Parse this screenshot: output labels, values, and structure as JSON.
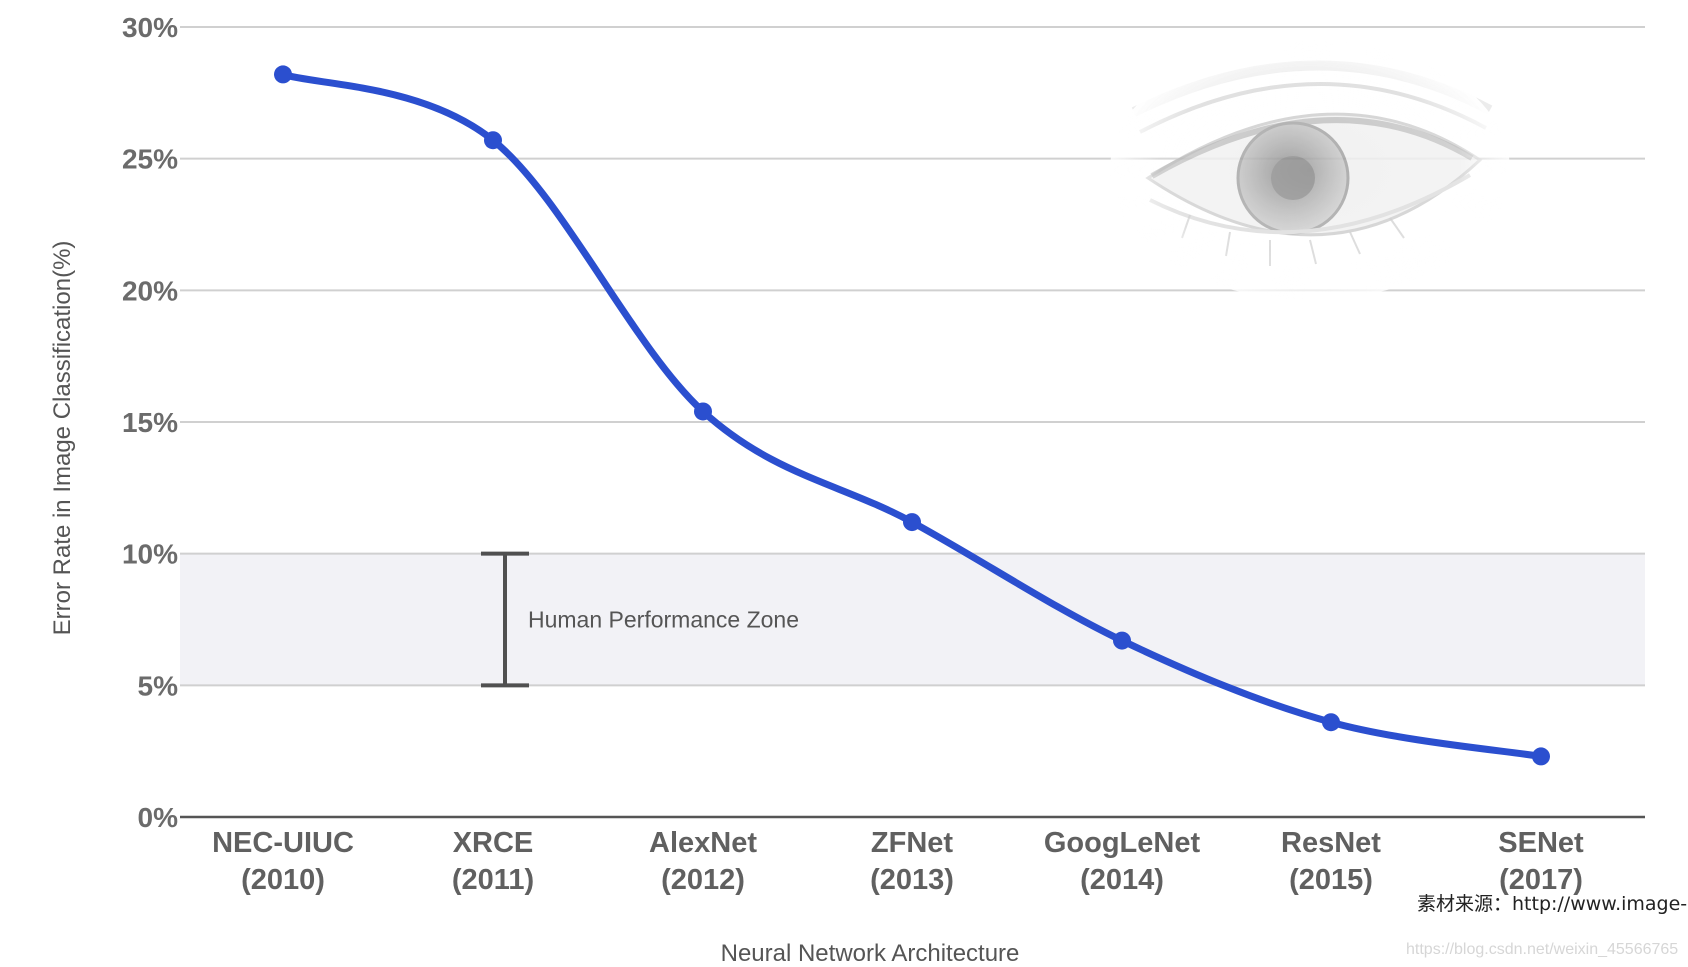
{
  "chart_data": {
    "type": "line",
    "categories": [
      [
        "NEC-UIUC",
        "(2010)"
      ],
      [
        "XRCE",
        "(2011)"
      ],
      [
        "AlexNet",
        "(2012)"
      ],
      [
        "ZFNet",
        "(2013)"
      ],
      [
        "GoogLeNet",
        "(2014)"
      ],
      [
        "ResNet",
        "(2015)"
      ],
      [
        "SENet",
        "(2017)"
      ]
    ],
    "series": [
      {
        "values": [
          28.2,
          25.7,
          15.4,
          11.2,
          6.7,
          3.6,
          2.3
        ]
      }
    ],
    "ylim": [
      0,
      30
    ],
    "yticks": [
      0,
      5,
      10,
      15,
      20,
      25,
      30
    ],
    "ytick_labels": [
      "0%",
      "5%",
      "10%",
      "15%",
      "20%",
      "25%",
      "30%"
    ],
    "ylabel": "Error Rate in Image Classification(%)",
    "xlabel": "Neural Network Architecture",
    "grid": true,
    "annotation": {
      "label": "Human Performance Zone",
      "range": [
        5,
        10
      ]
    },
    "colors": {
      "line": "#2b4fcf",
      "grid": "#d0d0d0",
      "zone": "#f2f2f6",
      "errorbar": "#505050"
    }
  },
  "overlays": {
    "eye_image": "eye-photo",
    "source_text": "素材来源：http://www.image-n",
    "watermark": "https://blog.csdn.net/weixin_45566765"
  }
}
